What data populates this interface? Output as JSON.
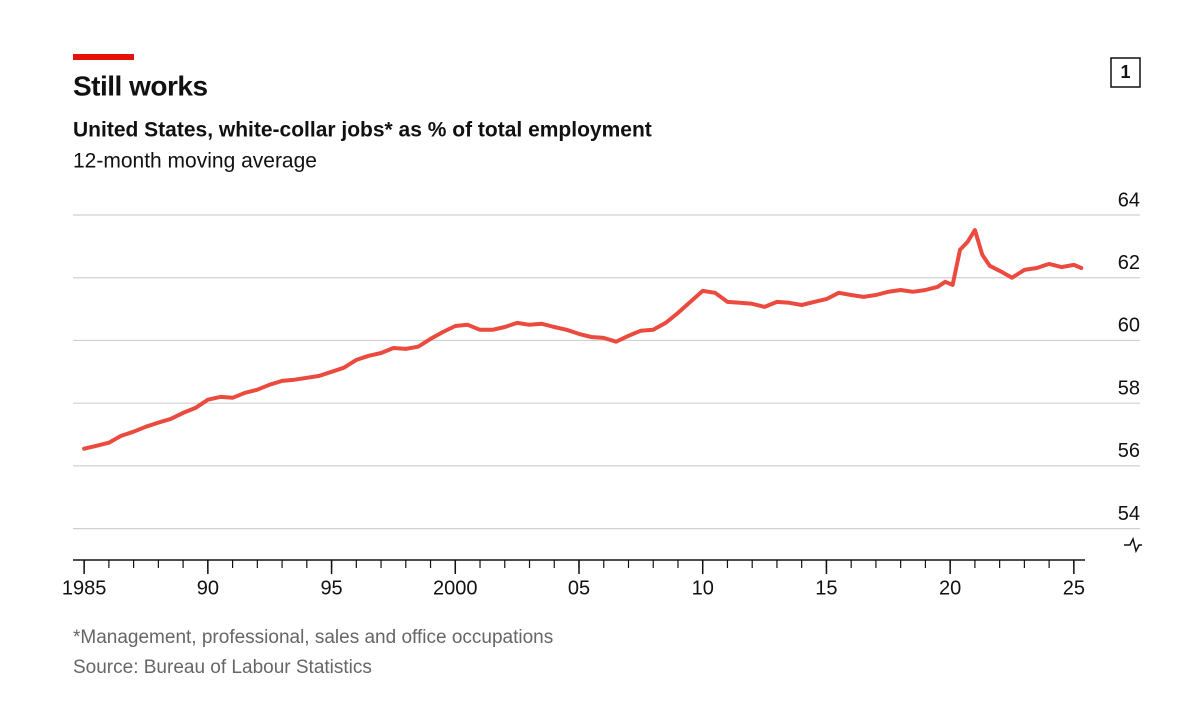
{
  "chart_data": {
    "type": "line",
    "title": "Still works",
    "subtitle": "United States, white-collar jobs* as % of total employment",
    "subtitle2": "12-month moving average",
    "footnote": "*Management, professional, sales and office occupations",
    "source": "Source: Bureau of Labour Statistics",
    "chart_number": "1",
    "x": [
      1985,
      1985.5,
      1986,
      1986.5,
      1987,
      1987.5,
      1988,
      1988.5,
      1989,
      1989.5,
      1990,
      1990.5,
      1991,
      1991.5,
      1992,
      1992.5,
      1993,
      1993.5,
      1994,
      1994.5,
      1995,
      1995.5,
      1996,
      1996.5,
      1997,
      1997.5,
      1998,
      1998.5,
      1999,
      1999.5,
      2000,
      2000.5,
      2001,
      2001.5,
      2002,
      2002.5,
      2003,
      2003.5,
      2004,
      2004.5,
      2005,
      2005.5,
      2006,
      2006.5,
      2007,
      2007.5,
      2008,
      2008.5,
      2009,
      2009.5,
      2010,
      2010.5,
      2011,
      2011.5,
      2012,
      2012.5,
      2013,
      2013.5,
      2014,
      2014.5,
      2015,
      2015.5,
      2016,
      2016.5,
      2017,
      2017.5,
      2018,
      2018.5,
      2019,
      2019.5,
      2019.8,
      2020.1,
      2020.4,
      2020.7,
      2021.0,
      2021.3,
      2021.6,
      2022,
      2022.5,
      2023,
      2023.5,
      2024,
      2024.5,
      2025,
      2025.3
    ],
    "series": [
      {
        "name": "White-collar jobs",
        "color": "#eb4a3f",
        "values": [
          56.55,
          56.64,
          56.74,
          56.96,
          57.09,
          57.25,
          57.38,
          57.5,
          57.69,
          57.85,
          58.11,
          58.2,
          58.17,
          58.33,
          58.43,
          58.59,
          58.71,
          58.75,
          58.81,
          58.87,
          59.0,
          59.13,
          59.38,
          59.51,
          59.6,
          59.76,
          59.73,
          59.8,
          60.05,
          60.27,
          60.46,
          60.5,
          60.34,
          60.34,
          60.43,
          60.56,
          60.5,
          60.53,
          60.43,
          60.34,
          60.21,
          60.11,
          60.08,
          59.96,
          60.15,
          60.31,
          60.34,
          60.56,
          60.88,
          61.23,
          61.58,
          61.52,
          61.23,
          61.2,
          61.17,
          61.07,
          61.23,
          61.2,
          61.13,
          61.23,
          61.32,
          61.52,
          61.45,
          61.39,
          61.45,
          61.55,
          61.61,
          61.55,
          61.61,
          61.71,
          61.87,
          61.77,
          62.89,
          63.14,
          63.52,
          62.73,
          62.38,
          62.22,
          62.0,
          62.25,
          62.31,
          62.44,
          62.34,
          62.41,
          62.31
        ]
      }
    ],
    "xlim": [
      1984.55,
      2025.45
    ],
    "xticks": [
      {
        "value": 1985,
        "label": "1985"
      },
      {
        "value": 1990,
        "label": "90"
      },
      {
        "value": 1995,
        "label": "95"
      },
      {
        "value": 2000,
        "label": "2000"
      },
      {
        "value": 2005,
        "label": "05"
      },
      {
        "value": 2010,
        "label": "10"
      },
      {
        "value": 2015,
        "label": "15"
      },
      {
        "value": 2020,
        "label": "20"
      },
      {
        "value": 2025,
        "label": "25"
      }
    ],
    "xticks_minor": [
      1985,
      1986,
      1987,
      1988,
      1989,
      1990,
      1991,
      1992,
      1993,
      1994,
      1995,
      1996,
      1997,
      1998,
      1999,
      2000,
      2001,
      2002,
      2003,
      2004,
      2005,
      2006,
      2007,
      2008,
      2009,
      2010,
      2011,
      2012,
      2013,
      2014,
      2015,
      2016,
      2017,
      2018,
      2019,
      2020,
      2021,
      2022,
      2023,
      2024,
      2025
    ],
    "ylim": [
      53,
      64
    ],
    "yticks": [
      54,
      56,
      58,
      60,
      62,
      64
    ],
    "grid": true
  }
}
